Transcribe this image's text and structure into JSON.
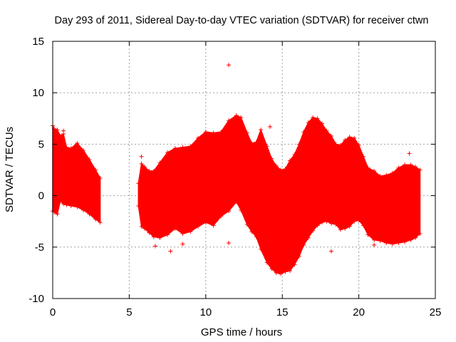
{
  "chart_data": {
    "type": "scatter",
    "title": "Day 293 of 2011, Sidereal Day-to-day VTEC variation (SDTVAR) for receiver ctwn",
    "xlabel": "GPS time / hours",
    "ylabel": "SDTVAR / TECUs",
    "xlim": [
      0,
      25
    ],
    "ylim": [
      -10,
      15
    ],
    "xticks": [
      0,
      5,
      10,
      15,
      20,
      25
    ],
    "yticks": [
      -10,
      -5,
      0,
      5,
      10,
      15
    ],
    "grid": true,
    "series_color": "#ff0000",
    "envelope": {
      "description": "dense band of points: upper and lower bounds of SDTVAR vs GPS time",
      "segments": [
        {
          "x": [
            0.0,
            0.1,
            0.3,
            0.5,
            0.7,
            0.9,
            1.2,
            1.6,
            2.0,
            2.4,
            2.8,
            3.1
          ],
          "upper": [
            6.8,
            6.5,
            6.4,
            5.8,
            6.0,
            4.7,
            4.6,
            5.1,
            4.4,
            3.5,
            2.5,
            1.7
          ],
          "lower": [
            -1.5,
            -1.6,
            -1.8,
            -0.5,
            -0.8,
            -0.9,
            -1.0,
            -1.1,
            -1.4,
            -1.8,
            -2.3,
            -2.6
          ]
        },
        {
          "x": [
            5.6,
            5.8,
            6.0,
            6.3,
            6.6,
            7.0,
            7.5,
            8.0,
            8.5,
            9.0,
            9.5,
            10.0,
            10.5,
            11.0,
            11.5,
            12.0,
            12.3,
            12.7,
            13.0,
            13.3,
            13.6,
            14.0,
            14.3,
            14.6,
            14.9,
            15.2,
            15.5,
            15.8,
            16.1,
            16.4,
            16.7,
            17.0,
            17.3,
            17.6,
            17.9,
            18.2,
            18.5,
            18.8,
            19.1,
            19.4,
            19.7,
            20.0,
            20.3,
            20.6,
            21.0,
            21.4,
            21.8,
            22.2,
            22.6,
            23.0,
            23.4,
            23.7,
            24.0
          ],
          "upper": [
            1.2,
            3.1,
            2.8,
            2.4,
            2.4,
            3.2,
            4.2,
            4.6,
            4.7,
            4.8,
            5.6,
            6.2,
            6.1,
            6.2,
            7.3,
            7.8,
            7.6,
            6.1,
            5.1,
            5.2,
            6.4,
            4.8,
            3.6,
            2.9,
            2.5,
            2.6,
            3.4,
            4.0,
            5.0,
            6.2,
            7.1,
            7.6,
            7.5,
            7.0,
            6.3,
            5.8,
            5.0,
            4.9,
            5.4,
            5.7,
            5.6,
            4.9,
            3.8,
            2.7,
            2.4,
            1.9,
            2.0,
            2.2,
            2.7,
            3.0,
            3.0,
            2.8,
            2.5
          ],
          "lower": [
            -1.0,
            -3.0,
            -3.2,
            -3.6,
            -4.0,
            -4.1,
            -3.8,
            -3.2,
            -3.7,
            -3.5,
            -3.0,
            -2.6,
            -2.9,
            -2.0,
            -1.5,
            -0.6,
            -1.4,
            -2.8,
            -3.5,
            -4.0,
            -5.2,
            -6.5,
            -7.1,
            -7.5,
            -7.6,
            -7.4,
            -7.3,
            -6.7,
            -5.9,
            -4.8,
            -4.1,
            -3.4,
            -2.9,
            -2.6,
            -2.5,
            -2.7,
            -2.8,
            -3.3,
            -3.2,
            -3.0,
            -2.5,
            -2.4,
            -2.9,
            -3.8,
            -4.3,
            -4.4,
            -4.6,
            -4.7,
            -4.6,
            -4.5,
            -4.3,
            -4.1,
            -3.7
          ]
        }
      ]
    },
    "outliers": [
      {
        "x": 11.5,
        "y": 12.7
      },
      {
        "x": 11.5,
        "y": -4.6
      },
      {
        "x": 5.8,
        "y": 3.8
      },
      {
        "x": 6.0,
        "y": -1.6
      },
      {
        "x": 6.7,
        "y": -4.9
      },
      {
        "x": 7.7,
        "y": -5.4
      },
      {
        "x": 8.5,
        "y": -4.7
      },
      {
        "x": 14.2,
        "y": 6.7
      },
      {
        "x": 18.2,
        "y": -5.4
      },
      {
        "x": 21.0,
        "y": -4.8
      },
      {
        "x": 23.3,
        "y": 4.1
      },
      {
        "x": 23.9,
        "y": -3.6
      },
      {
        "x": 0.7,
        "y": 6.3
      }
    ]
  }
}
